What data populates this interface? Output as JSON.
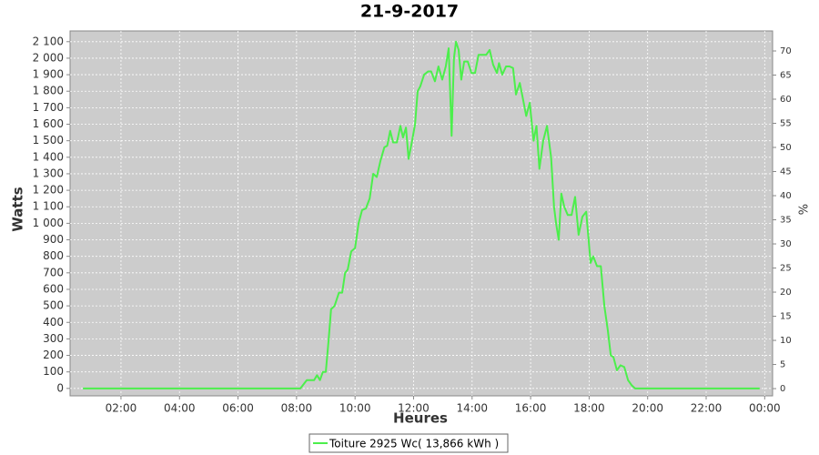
{
  "chart_data": {
    "type": "line",
    "title": "21-9-2017",
    "x_label": "Heures",
    "y_label": "Watts",
    "y2_label": "%",
    "x": [
      0.7,
      4,
      8.0,
      8.13,
      8.35,
      8.6,
      8.7,
      8.8,
      8.9,
      9.0,
      9.1,
      9.18,
      9.3,
      9.45,
      9.56,
      9.66,
      9.75,
      9.87,
      10.0,
      10.12,
      10.24,
      10.37,
      10.5,
      10.62,
      10.74,
      10.87,
      11.0,
      11.1,
      11.2,
      11.3,
      11.43,
      11.55,
      11.64,
      11.74,
      11.83,
      11.95,
      12.05,
      12.14,
      12.23,
      12.36,
      12.5,
      12.6,
      12.73,
      12.85,
      12.98,
      13.1,
      13.2,
      13.3,
      13.38,
      13.45,
      13.54,
      13.63,
      13.73,
      13.85,
      13.98,
      14.1,
      14.22,
      14.35,
      14.48,
      14.6,
      14.72,
      14.85,
      14.92,
      15.03,
      15.16,
      15.28,
      15.4,
      15.5,
      15.63,
      15.72,
      15.85,
      15.97,
      16.1,
      16.2,
      16.3,
      16.43,
      16.56,
      16.7,
      16.8,
      16.87,
      16.96,
      17.05,
      17.15,
      17.27,
      17.4,
      17.52,
      17.64,
      17.77,
      17.9,
      18.05,
      18.14,
      18.27,
      18.4,
      18.52,
      18.64,
      18.74,
      18.83,
      18.95,
      19.07,
      19.2,
      19.33,
      19.45,
      19.57,
      21.5,
      23.83
    ],
    "series": [
      {
        "name": "Toiture 2925 Wc( 13,866 kWh )",
        "color": "#4cef4c",
        "values": [
          0,
          0,
          0,
          0,
          50,
          50,
          80,
          50,
          100,
          100,
          300,
          480,
          500,
          580,
          580,
          700,
          720,
          830,
          850,
          1000,
          1080,
          1090,
          1150,
          1300,
          1280,
          1380,
          1460,
          1470,
          1560,
          1490,
          1490,
          1590,
          1520,
          1580,
          1390,
          1500,
          1600,
          1800,
          1830,
          1900,
          1920,
          1920,
          1860,
          1950,
          1870,
          1950,
          2060,
          1530,
          2000,
          2100,
          2050,
          1870,
          1980,
          1980,
          1910,
          1910,
          2020,
          2020,
          2020,
          2050,
          1960,
          1910,
          1970,
          1900,
          1950,
          1950,
          1940,
          1780,
          1850,
          1770,
          1650,
          1730,
          1500,
          1590,
          1330,
          1500,
          1590,
          1400,
          1100,
          1000,
          900,
          1180,
          1100,
          1050,
          1050,
          1160,
          930,
          1040,
          1070,
          760,
          800,
          740,
          740,
          500,
          350,
          200,
          190,
          110,
          140,
          130,
          50,
          20,
          0,
          0,
          0
        ]
      }
    ],
    "xlim": [
      0.26,
      24.27
    ],
    "xticks": [
      {
        "value": 2,
        "label": "02:00"
      },
      {
        "value": 4,
        "label": "04:00"
      },
      {
        "value": 6,
        "label": "06:00"
      },
      {
        "value": 8,
        "label": "08:00"
      },
      {
        "value": 10,
        "label": "10:00"
      },
      {
        "value": 12,
        "label": "12:00"
      },
      {
        "value": 14,
        "label": "14:00"
      },
      {
        "value": 16,
        "label": "16:00"
      },
      {
        "value": 18,
        "label": "18:00"
      },
      {
        "value": 20,
        "label": "20:00"
      },
      {
        "value": 22,
        "label": "22:00"
      },
      {
        "value": 24,
        "label": "00:00"
      }
    ],
    "ylim": [
      -45,
      2165
    ],
    "yticks": [
      0,
      100,
      200,
      300,
      400,
      500,
      600,
      700,
      800,
      900,
      {
        "value": 1000,
        "label": "1 000"
      },
      {
        "value": 1100,
        "label": "1 100"
      },
      {
        "value": 1200,
        "label": "1 200"
      },
      {
        "value": 1300,
        "label": "1 300"
      },
      {
        "value": 1400,
        "label": "1 400"
      },
      {
        "value": 1500,
        "label": "1 500"
      },
      {
        "value": 1600,
        "label": "1 600"
      },
      {
        "value": 1700,
        "label": "1 700"
      },
      {
        "value": 1800,
        "label": "1 800"
      },
      {
        "value": 1900,
        "label": "1 900"
      },
      {
        "value": 2000,
        "label": "2 000"
      },
      {
        "value": 2100,
        "label": "2 100"
      }
    ],
    "y2lim": [
      -1.5,
      74.15
    ],
    "y2ticks": [
      0,
      5,
      10,
      15,
      20,
      25,
      30,
      35,
      40,
      45,
      50,
      55,
      60,
      65,
      70
    ],
    "grid": true,
    "legend": "bottom"
  }
}
